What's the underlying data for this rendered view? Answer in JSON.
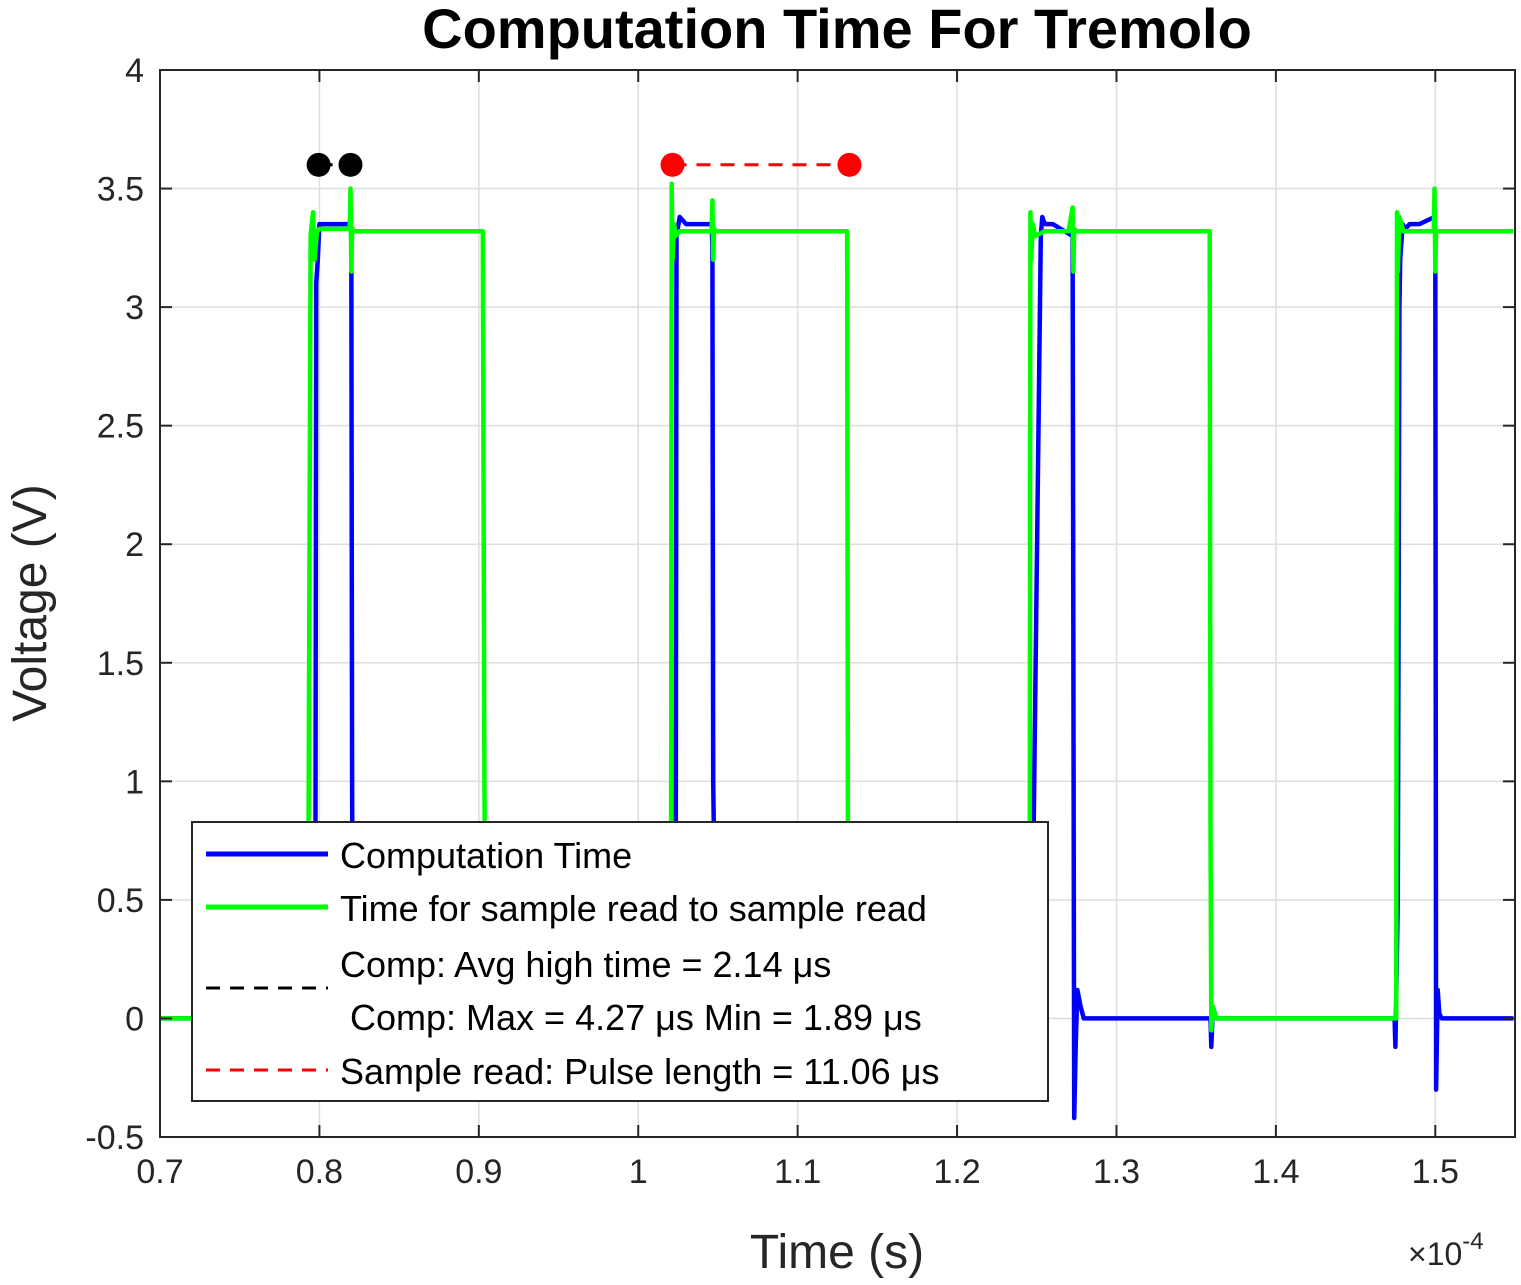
{
  "chart_data": {
    "type": "line",
    "title": "Computation Time For Tremolo",
    "xlabel": "Time (s)",
    "ylabel": "Voltage (V)",
    "x_exponent_label": "×10",
    "x_exponent_power": "-4",
    "xlim": [
      0.7,
      1.55
    ],
    "ylim": [
      -0.5,
      4
    ],
    "xticks": [
      0.7,
      0.8,
      0.9,
      1.0,
      1.1,
      1.2,
      1.3,
      1.4,
      1.5
    ],
    "xtick_labels": [
      "0.7",
      "0.8",
      "0.9",
      "1",
      "1.1",
      "1.2",
      "1.3",
      "1.4",
      "1.5"
    ],
    "yticks": [
      -0.5,
      0,
      0.5,
      1,
      1.5,
      2,
      2.5,
      3,
      3.5,
      4
    ],
    "ytick_labels": [
      "-0.5",
      "0",
      "0.5",
      "1",
      "1.5",
      "2",
      "2.5",
      "3",
      "3.5",
      "4"
    ],
    "grid": true,
    "legend_position": "bottom-left",
    "series": [
      {
        "name": "Computation Time",
        "color": "#0000FF",
        "style": "solid",
        "x": [
          0.7,
          0.7945,
          0.7955,
          0.7965,
          0.7975,
          0.798,
          0.799,
          0.8,
          0.81,
          0.8195,
          0.82,
          0.8205,
          0.821,
          0.83,
          0.87,
          0.9045,
          0.905,
          0.95,
          1.015,
          1.02,
          1.022,
          1.0235,
          1.024,
          1.026,
          1.03,
          1.046,
          1.0465,
          1.047,
          1.049,
          1.08,
          1.13,
          1.131,
          1.18,
          1.24,
          1.2465,
          1.2475,
          1.2525,
          1.2535,
          1.2545,
          1.2555,
          1.26,
          1.2725,
          1.273,
          1.2735,
          1.2745,
          1.2755,
          1.2775,
          1.2795,
          1.29,
          1.33,
          1.359,
          1.3595,
          1.3605,
          1.3625,
          1.38,
          1.45,
          1.4745,
          1.475,
          1.4765,
          1.4775,
          1.478,
          1.4795,
          1.481,
          1.484,
          1.49,
          1.4995,
          1.5,
          1.5005,
          1.5015,
          1.5025,
          1.504,
          1.52,
          1.549
        ],
        "y": [
          0.0,
          0.0,
          0.0,
          0.0,
          0.5,
          3.1,
          3.2,
          3.35,
          3.35,
          3.35,
          3.3,
          1.0,
          0.0,
          0.0,
          0.0,
          0.0,
          0.0,
          0.0,
          0.0,
          0.0,
          0.02,
          0.4,
          3.3,
          3.38,
          3.35,
          3.35,
          3.25,
          1.0,
          0.0,
          0.0,
          0.0,
          0.0,
          0.0,
          0.0,
          0.0,
          0.5,
          3.3,
          3.38,
          3.36,
          3.35,
          3.35,
          3.3,
          1.5,
          -0.42,
          -0.1,
          0.12,
          0.05,
          0.0,
          0.0,
          0.0,
          0.0,
          -0.12,
          0.05,
          0.0,
          0.0,
          0.0,
          0.0,
          -0.12,
          0.5,
          3.0,
          3.2,
          3.35,
          3.33,
          3.35,
          3.35,
          3.38,
          3.3,
          -0.3,
          0.12,
          0.02,
          0.0,
          0.0,
          0.0
        ]
      },
      {
        "name": "Time for sample read to sample read",
        "color": "#00FF00",
        "style": "solid",
        "x": [
          0.7,
          0.7925,
          0.793,
          0.7945,
          0.796,
          0.797,
          0.7985,
          0.8,
          0.805,
          0.815,
          0.819,
          0.8195,
          0.82,
          0.8205,
          0.821,
          0.822,
          0.83,
          0.87,
          0.9025,
          0.9035,
          0.9045,
          0.95,
          1.015,
          1.0205,
          1.021,
          1.0215,
          1.0225,
          1.0235,
          1.026,
          1.04,
          1.046,
          1.0465,
          1.047,
          1.0475,
          1.049,
          1.07,
          1.131,
          1.1315,
          1.133,
          1.18,
          1.2455,
          1.246,
          1.2465,
          1.2475,
          1.249,
          1.255,
          1.27,
          1.2725,
          1.273,
          1.2735,
          1.275,
          1.3,
          1.3585,
          1.359,
          1.3595,
          1.3605,
          1.3625,
          1.38,
          1.45,
          1.4755,
          1.476,
          1.4765,
          1.4775,
          1.48,
          1.49,
          1.499,
          1.4995,
          1.5,
          1.5005,
          1.502,
          1.52,
          1.549
        ],
        "y": [
          0.0,
          0.0,
          0.5,
          3.3,
          3.4,
          3.2,
          3.32,
          3.33,
          3.33,
          3.33,
          3.33,
          3.5,
          3.15,
          3.33,
          3.33,
          3.32,
          3.32,
          3.32,
          3.32,
          1.0,
          0.0,
          0.0,
          0.0,
          0.02,
          3.52,
          3.2,
          3.35,
          3.3,
          3.32,
          3.32,
          3.32,
          3.45,
          3.2,
          3.33,
          3.32,
          3.32,
          3.32,
          0.8,
          0.0,
          0.0,
          0.0,
          3.4,
          3.2,
          3.35,
          3.3,
          3.32,
          3.32,
          3.42,
          3.15,
          3.33,
          3.32,
          3.32,
          3.32,
          0.8,
          -0.05,
          0.05,
          0.0,
          0.0,
          0.0,
          0.0,
          3.4,
          3.15,
          3.38,
          3.32,
          3.32,
          3.32,
          3.5,
          3.15,
          3.32,
          3.32,
          3.32,
          3.32
        ]
      },
      {
        "name": "Comp: Avg high time = 2.14 μs",
        "name_line2": " Comp: Max = 4.27 μs Min = 1.89 μs",
        "color": "#000000",
        "style": "dashed",
        "marker": "circle",
        "x": [
          0.7995,
          0.8195
        ],
        "y": [
          3.6,
          3.6
        ]
      },
      {
        "name": "Sample read: Pulse length = 11.06 μs",
        "color": "#FF0000",
        "style": "dashed",
        "marker": "circle",
        "x": [
          1.0215,
          1.1325
        ],
        "y": [
          3.6,
          3.6
        ]
      }
    ]
  }
}
